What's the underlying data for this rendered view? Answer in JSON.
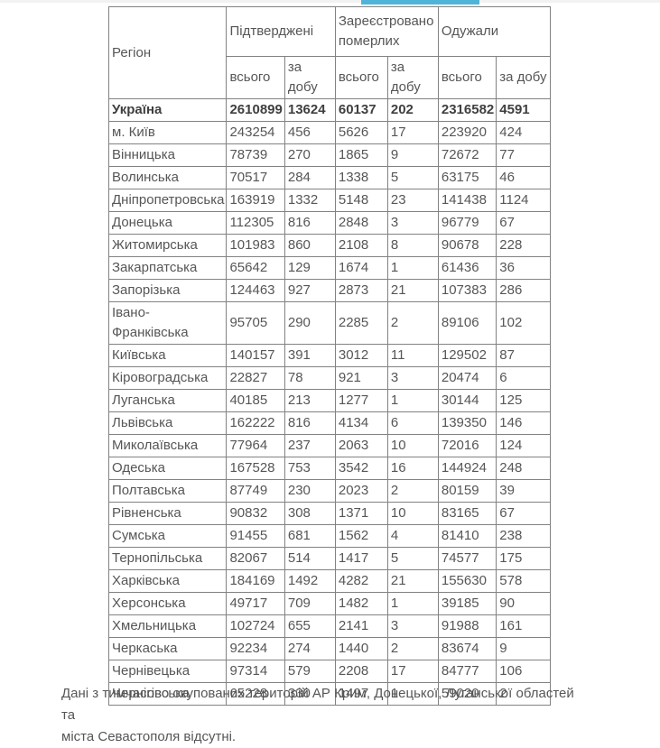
{
  "colors": {
    "accent_bar": "#4fb4d8",
    "top_strip": "#f2f2f2",
    "table_border": "#828282",
    "text": "#565658"
  },
  "table": {
    "header": {
      "region": "Регіон",
      "groups": [
        {
          "label": "Підтверджені"
        },
        {
          "label": "Зареєстровано померлих"
        },
        {
          "label": "Одужали"
        }
      ],
      "sub": {
        "total": "всього",
        "per_day": "за добу"
      }
    },
    "total_row": {
      "region": "Україна",
      "values": [
        2610899,
        13624,
        60137,
        202,
        2316582,
        4591
      ]
    },
    "rows": [
      {
        "region": "м. Київ",
        "values": [
          243254,
          456,
          5626,
          17,
          223920,
          424
        ]
      },
      {
        "region": "Вінницька",
        "values": [
          78739,
          270,
          1865,
          9,
          72672,
          77
        ]
      },
      {
        "region": "Волинська",
        "values": [
          70517,
          284,
          1338,
          5,
          63175,
          46
        ]
      },
      {
        "region": "Дніпропетровська",
        "values": [
          163919,
          1332,
          5148,
          23,
          141438,
          1124
        ]
      },
      {
        "region": "Донецька",
        "values": [
          112305,
          816,
          2848,
          3,
          96779,
          67
        ]
      },
      {
        "region": "Житомирська",
        "values": [
          101983,
          860,
          2108,
          8,
          90678,
          228
        ]
      },
      {
        "region": "Закарпатська",
        "values": [
          65642,
          129,
          1674,
          1,
          61436,
          36
        ]
      },
      {
        "region": "Запорізька",
        "values": [
          124463,
          927,
          2873,
          21,
          107383,
          286
        ]
      },
      {
        "region": "Івано-Франківська",
        "values": [
          95705,
          290,
          2285,
          2,
          89106,
          102
        ]
      },
      {
        "region": "Київська",
        "values": [
          140157,
          391,
          3012,
          11,
          129502,
          87
        ]
      },
      {
        "region": "Кіровоградська",
        "values": [
          22827,
          78,
          921,
          3,
          20474,
          6
        ]
      },
      {
        "region": "Луганська",
        "values": [
          40185,
          213,
          1277,
          1,
          30144,
          125
        ]
      },
      {
        "region": "Львівська",
        "values": [
          162222,
          816,
          4134,
          6,
          139350,
          146
        ]
      },
      {
        "region": "Миколаївська",
        "values": [
          77964,
          237,
          2063,
          10,
          72016,
          124
        ]
      },
      {
        "region": "Одеська",
        "values": [
          167528,
          753,
          3542,
          16,
          144924,
          248
        ]
      },
      {
        "region": "Полтавська",
        "values": [
          87749,
          230,
          2023,
          2,
          80159,
          39
        ]
      },
      {
        "region": "Рівненська",
        "values": [
          90832,
          308,
          1371,
          10,
          83165,
          67
        ]
      },
      {
        "region": "Сумська",
        "values": [
          91455,
          681,
          1562,
          4,
          81410,
          238
        ]
      },
      {
        "region": "Тернопільська",
        "values": [
          82067,
          514,
          1417,
          5,
          74577,
          175
        ]
      },
      {
        "region": "Харківська",
        "values": [
          184169,
          1492,
          4282,
          21,
          155630,
          578
        ]
      },
      {
        "region": "Херсонська",
        "values": [
          49717,
          709,
          1482,
          1,
          39185,
          90
        ]
      },
      {
        "region": "Хмельницька",
        "values": [
          102724,
          655,
          2141,
          3,
          91988,
          161
        ]
      },
      {
        "region": "Черкаська",
        "values": [
          92234,
          274,
          1440,
          2,
          83674,
          9
        ]
      },
      {
        "region": "Чернівецька",
        "values": [
          97314,
          579,
          2208,
          17,
          84777,
          106
        ]
      },
      {
        "region": "Чернігівська",
        "values": [
          65228,
          330,
          1497,
          1,
          59020,
          2
        ]
      }
    ]
  },
  "footer": {
    "line1": "Дані з тимчасово окупованих територій АР Крим, Донецької, Луганської областей та",
    "line2": "міста Севастополя відсутні."
  }
}
